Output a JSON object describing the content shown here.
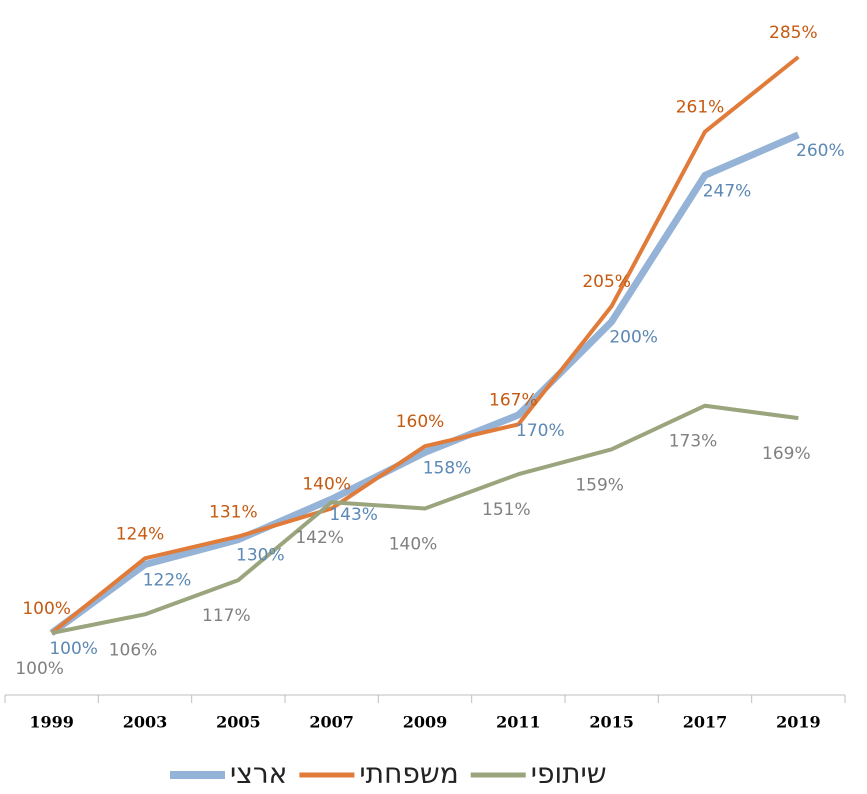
{
  "chart_data": {
    "type": "line",
    "categories": [
      "1999",
      "2003",
      "2005",
      "2007",
      "2009",
      "2011",
      "2015",
      "2017",
      "2019"
    ],
    "series": [
      {
        "name": "ארצי",
        "color": "#95b3d7",
        "label_color": "#5b88b4",
        "values": [
          100,
          122,
          130,
          143,
          158,
          170,
          200,
          247,
          260
        ],
        "value_labels": [
          "100%",
          "122%",
          "130%",
          "143%",
          "158%",
          "170%",
          "200%",
          "247%",
          "260%"
        ]
      },
      {
        "name": "משפחתי",
        "color": "#e07b39",
        "label_color": "#c55a11",
        "values": [
          100,
          124,
          131,
          140,
          160,
          167,
          205,
          261,
          285
        ],
        "value_labels": [
          "100%",
          "124%",
          "131%",
          "140%",
          "160%",
          "167%",
          "205%",
          "261%",
          "285%"
        ]
      },
      {
        "name": "שיתופי",
        "color": "#9ba57d",
        "label_color": "#808080",
        "values": [
          100,
          106,
          117,
          142,
          140,
          151,
          159,
          173,
          169
        ],
        "value_labels": [
          "100%",
          "106%",
          "117%",
          "142%",
          "140%",
          "151%",
          "159%",
          "173%",
          "169%"
        ]
      }
    ],
    "legend": "bottom"
  }
}
